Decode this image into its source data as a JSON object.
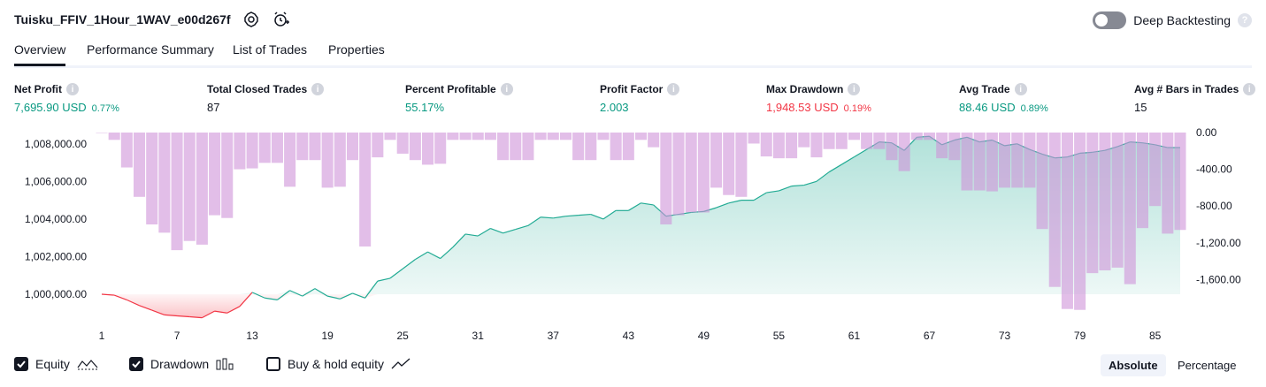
{
  "header": {
    "title": "Tuisku_FFIV_1Hour_1WAV_e00d267f",
    "deep_backtesting_label": "Deep Backtesting",
    "help_mark": "?"
  },
  "tabs": [
    "Overview",
    "Performance Summary",
    "List of Trades",
    "Properties"
  ],
  "active_tab": 0,
  "info_mark": "i",
  "stats": [
    {
      "label": "Net Profit",
      "value": "7,695.90 USD",
      "pct": "0.77%",
      "color": "#089981"
    },
    {
      "label": "Total Closed Trades",
      "value": "87",
      "pct": "",
      "color": "#131722"
    },
    {
      "label": "Percent Profitable",
      "value": "55.17%",
      "pct": "",
      "color": "#089981"
    },
    {
      "label": "Profit Factor",
      "value": "2.003",
      "pct": "",
      "color": "#089981"
    },
    {
      "label": "Max Drawdown",
      "value": "1,948.53 USD",
      "pct": "0.19%",
      "color": "#f23645"
    },
    {
      "label": "Avg Trade",
      "value": "88.46 USD",
      "pct": "0.89%",
      "color": "#089981"
    },
    {
      "label": "Avg # Bars in Trades",
      "value": "15",
      "pct": "",
      "color": "#131722"
    }
  ],
  "legend": {
    "equity_label": "Equity",
    "drawdown_label": "Drawdown",
    "buyhold_label": "Buy & hold equity",
    "equity_checked": true,
    "drawdown_checked": true,
    "buyhold_checked": false
  },
  "scale_toggle": {
    "absolute_label": "Absolute",
    "percentage_label": "Percentage",
    "active": "Absolute"
  },
  "colors": {
    "equity_up": "#22ab94",
    "equity_down": "#f23645",
    "drawdown": "#ce93d8",
    "accent": "#131722"
  },
  "chart_data": {
    "type": "area",
    "x_ticks": [
      "1",
      "7",
      "13",
      "19",
      "25",
      "31",
      "37",
      "43",
      "49",
      "55",
      "61",
      "67",
      "73",
      "79",
      "85"
    ],
    "left_ticks": [
      "1,008,000.00",
      "1,006,000.00",
      "1,004,000.00",
      "1,002,000.00",
      "1,000,000.00"
    ],
    "right_ticks": [
      "0.00",
      "-400.00",
      "-800.00",
      "-1,200.00",
      "-1,600.00"
    ],
    "equity_ylim": [
      999200,
      1008600
    ],
    "drawdown_ylim": [
      -2000,
      0
    ],
    "series": [
      {
        "name": "Equity",
        "values": [
          1000000,
          999950,
          999700,
          999400,
          999150,
          998900,
          998850,
          998800,
          998750,
          999100,
          999000,
          999350,
          1000100,
          999800,
          999700,
          1000200,
          999900,
          1000300,
          999900,
          999750,
          1000050,
          999800,
          1000700,
          1000850,
          1001350,
          1001850,
          1002250,
          1001900,
          1002500,
          1003200,
          1003100,
          1003500,
          1003250,
          1003450,
          1003650,
          1004100,
          1004050,
          1004150,
          1004200,
          1004250,
          1004000,
          1004450,
          1004450,
          1004850,
          1004750,
          1004150,
          1004250,
          1004350,
          1004400,
          1004600,
          1004850,
          1005000,
          1005000,
          1005400,
          1005500,
          1005750,
          1005800,
          1006000,
          1006500,
          1006900,
          1007300,
          1007700,
          1008100,
          1008050,
          1007650,
          1008350,
          1008400,
          1007950,
          1008200,
          1008350,
          1008100,
          1008200,
          1007900,
          1008000,
          1007700,
          1007450,
          1007250,
          1007300,
          1007500,
          1007550,
          1007650,
          1007850,
          1008100,
          1008050,
          1007950,
          1007800,
          1007800
        ]
      },
      {
        "name": "Drawdown",
        "values": [
          0,
          -80,
          -380,
          -700,
          -1000,
          -1090,
          -1280,
          -1180,
          -1220,
          -900,
          -930,
          -400,
          -390,
          -330,
          -330,
          -590,
          -300,
          -300,
          -600,
          -590,
          -300,
          -1240,
          -270,
          -80,
          -230,
          -300,
          -350,
          -340,
          -80,
          -80,
          -80,
          -80,
          -300,
          -300,
          -300,
          -80,
          -80,
          -80,
          -300,
          -300,
          -80,
          -300,
          -300,
          -80,
          -160,
          -1000,
          -900,
          -870,
          -870,
          -600,
          -680,
          -700,
          -120,
          -260,
          -280,
          -280,
          -160,
          -270,
          -180,
          -180,
          -80,
          -180,
          -180,
          -300,
          -420,
          -80,
          -80,
          -280,
          -300,
          -630,
          -630,
          -640,
          -600,
          -600,
          -600,
          -1050,
          -1680,
          -1920,
          -1930,
          -1530,
          -1500,
          -1470,
          -1650,
          -1040,
          -800,
          -1100,
          -1060
        ]
      }
    ]
  }
}
